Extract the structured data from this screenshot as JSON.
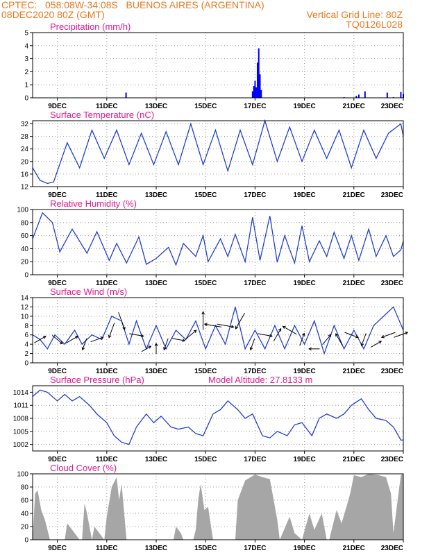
{
  "header": {
    "line1": "CPTEC:   058:08W-34:08S   BUENOS AIRES (ARGENTINA)",
    "line2": "08DEC2020 80Z (GMT)",
    "grid_note": "Vertical Grid Line: 80Z",
    "code": "TQ0126L028"
  },
  "x_ticks": [
    "9DEC",
    "11DEC",
    "13DEC",
    "15DEC",
    "17DEC",
    "19DEC",
    "21DEC",
    "23DEC"
  ],
  "chart_data": [
    {
      "type": "bar",
      "title": "Precipitation (mm/h)",
      "ylim": [
        0,
        5
      ],
      "yticks": [
        0,
        1,
        2,
        3,
        4,
        5
      ],
      "x_days": [
        11.78,
        16.9,
        16.95,
        17.0,
        17.05,
        17.1,
        17.15,
        17.2,
        17.25,
        20.6,
        21.1,
        21.2,
        21.45,
        22.35,
        22.6,
        22.9,
        23.0
      ],
      "values": [
        0.4,
        0.5,
        0.9,
        1.3,
        0.8,
        2.7,
        3.8,
        1.8,
        0.6,
        0.05,
        0.15,
        0.25,
        0.5,
        0.4,
        0.05,
        0.45,
        0.3
      ],
      "color": "#0000ff",
      "xlabel": "",
      "ylabel": ""
    },
    {
      "type": "line",
      "title": "Surface Temperature (nC)",
      "ylim": [
        12,
        33
      ],
      "yticks": [
        12,
        16,
        20,
        24,
        28,
        32
      ],
      "x_days": [
        8.0,
        8.3,
        8.6,
        8.85,
        9.4,
        9.9,
        10.4,
        10.9,
        11.4,
        11.9,
        12.4,
        12.9,
        13.4,
        13.9,
        14.4,
        14.9,
        15.4,
        15.9,
        16.4,
        16.9,
        17.4,
        17.9,
        18.4,
        18.9,
        19.4,
        19.9,
        20.4,
        20.9,
        21.4,
        21.9,
        22.4,
        22.9,
        23.0
      ],
      "values": [
        18,
        14,
        13,
        13.5,
        26,
        18,
        30,
        21,
        30,
        19,
        29,
        19,
        29.5,
        19,
        32,
        19,
        30,
        17,
        30,
        19,
        33,
        20,
        31,
        20,
        30,
        21,
        30,
        18,
        30,
        21,
        29,
        32,
        28
      ],
      "color": "#1f3fd0",
      "xlabel": "",
      "ylabel": ""
    },
    {
      "type": "line",
      "title": "Relative Humidity (%)",
      "ylim": [
        0,
        100
      ],
      "yticks": [
        0,
        20,
        40,
        60,
        80,
        100
      ],
      "x_days": [
        8.0,
        8.4,
        8.8,
        9.1,
        9.6,
        10.2,
        10.6,
        11.1,
        11.4,
        11.8,
        12.3,
        12.6,
        13.0,
        13.5,
        13.8,
        14.1,
        14.6,
        14.9,
        15.1,
        15.6,
        15.9,
        16.2,
        16.6,
        16.9,
        17.2,
        17.6,
        17.9,
        18.2,
        18.6,
        18.9,
        19.2,
        19.6,
        19.9,
        20.2,
        20.6,
        20.9,
        21.2,
        21.6,
        21.9,
        22.3,
        22.6,
        22.9,
        23.0
      ],
      "values": [
        55,
        95,
        80,
        35,
        70,
        33,
        66,
        22,
        48,
        18,
        58,
        16,
        25,
        42,
        15,
        48,
        28,
        60,
        20,
        55,
        28,
        62,
        20,
        88,
        22,
        90,
        19,
        60,
        18,
        75,
        20,
        52,
        28,
        65,
        25,
        60,
        22,
        70,
        28,
        60,
        28,
        38,
        52
      ],
      "color": "#1f3fd0",
      "xlabel": "",
      "ylabel": ""
    },
    {
      "type": "line",
      "title": "Surface Wind (m/s)",
      "ylim": [
        0,
        14
      ],
      "yticks": [
        0,
        2,
        4,
        6,
        8,
        10,
        12,
        14
      ],
      "x_days": [
        8.0,
        8.3,
        8.6,
        8.9,
        9.3,
        9.7,
        10.0,
        10.4,
        10.8,
        11.2,
        11.6,
        11.9,
        12.2,
        12.6,
        13.0,
        13.4,
        13.8,
        14.2,
        14.6,
        15.0,
        15.4,
        15.8,
        16.2,
        16.6,
        17.0,
        17.4,
        17.8,
        18.2,
        18.6,
        19.0,
        19.4,
        19.8,
        20.2,
        20.6,
        21.0,
        21.4,
        21.8,
        22.2,
        22.6,
        23.0
      ],
      "values": [
        6,
        5,
        3,
        6,
        4,
        7,
        4,
        6,
        5,
        10,
        9,
        4,
        9,
        3,
        8,
        3,
        7,
        5,
        9,
        3,
        8,
        4,
        12,
        3,
        7,
        3,
        8,
        3,
        8,
        4,
        9,
        2,
        8,
        3,
        7,
        3,
        8,
        10,
        12,
        7
      ],
      "color": "#1f3fd0",
      "arrow_x_days": [
        8.3,
        9.0,
        9.6,
        10.1,
        10.6,
        11.2,
        11.6,
        12.2,
        12.6,
        13.0,
        13.4,
        13.9,
        14.4,
        14.9,
        15.3,
        15.8,
        16.4,
        16.9,
        17.4,
        17.9,
        18.4,
        18.9,
        19.4,
        19.9,
        20.4,
        20.9,
        21.4,
        21.9,
        22.4,
        22.9
      ],
      "arrow_speed": [
        5,
        5,
        5,
        4,
        5,
        7,
        9,
        6,
        3,
        3,
        4,
        5,
        6,
        9,
        8,
        8,
        9,
        4,
        6,
        6,
        7,
        5,
        3,
        5,
        5,
        6,
        5,
        4,
        6,
        6
      ],
      "arrow_dir_deg": [
        60,
        130,
        60,
        200,
        70,
        200,
        160,
        100,
        60,
        0,
        200,
        100,
        50,
        0,
        280,
        100,
        210,
        200,
        100,
        30,
        300,
        20,
        270,
        40,
        330,
        110,
        200,
        60,
        250,
        70
      ],
      "xlabel": "",
      "ylabel": ""
    },
    {
      "type": "line",
      "title": "Surface Pressure (hPa)",
      "annotation": "Model Altitude: 27.8133 m",
      "ylim": [
        1000.5,
        1015.5
      ],
      "yticks": [
        1002,
        1005,
        1008,
        1011,
        1014
      ],
      "x_days": [
        8.0,
        8.3,
        8.6,
        9.0,
        9.3,
        9.6,
        9.9,
        10.3,
        10.6,
        11.0,
        11.3,
        11.6,
        11.9,
        12.2,
        12.6,
        12.9,
        13.2,
        13.6,
        13.9,
        14.3,
        14.6,
        14.9,
        15.3,
        15.6,
        15.9,
        16.3,
        16.6,
        16.9,
        17.3,
        17.6,
        17.9,
        18.3,
        18.6,
        18.9,
        19.3,
        19.6,
        19.9,
        20.3,
        20.6,
        20.9,
        21.3,
        21.6,
        21.9,
        22.3,
        22.6,
        22.9,
        23.0
      ],
      "values": [
        1013,
        1014.5,
        1014,
        1012,
        1013.5,
        1012,
        1013,
        1011,
        1009,
        1007,
        1004,
        1002.5,
        1002,
        1006,
        1009,
        1007,
        1008.5,
        1006,
        1005.5,
        1006,
        1004.5,
        1004,
        1009,
        1010,
        1012,
        1010,
        1008,
        1009,
        1004,
        1003.5,
        1005,
        1004,
        1006.5,
        1007,
        1004,
        1008,
        1009,
        1008,
        1009,
        1011,
        1012.5,
        1010,
        1008,
        1007.5,
        1006,
        1003,
        1003
      ],
      "color": "#1f3fd0",
      "xlabel": "",
      "ylabel": ""
    },
    {
      "type": "area",
      "title": "Cloud Cover (%)",
      "ylim": [
        0,
        100
      ],
      "yticks": [
        0,
        20,
        40,
        60,
        80,
        100
      ],
      "x_days": [
        8.0,
        8.1,
        8.2,
        8.35,
        8.5,
        8.7,
        8.8,
        9.3,
        9.4,
        9.9,
        10.0,
        10.1,
        10.2,
        10.4,
        10.5,
        10.9,
        11.0,
        11.2,
        11.4,
        11.5,
        11.6,
        11.8,
        11.9,
        13.7,
        13.8,
        14.0,
        14.1,
        14.5,
        14.6,
        14.7,
        14.8,
        14.95,
        15.1,
        15.3,
        16.2,
        16.3,
        16.6,
        17.0,
        17.3,
        17.6,
        17.9,
        18.0,
        18.4,
        18.6,
        18.9,
        19.2,
        19.4,
        19.7,
        19.9,
        20.0,
        20.3,
        20.5,
        20.7,
        20.85,
        21.0,
        21.3,
        21.6,
        22.0,
        22.3,
        22.5,
        22.6,
        22.9,
        23.0
      ],
      "values": [
        0,
        70,
        75,
        45,
        30,
        0,
        0,
        0,
        25,
        0,
        0,
        55,
        40,
        0,
        20,
        0,
        35,
        80,
        95,
        60,
        85,
        0,
        0,
        0,
        20,
        10,
        0,
        0,
        15,
        60,
        85,
        45,
        50,
        0,
        0,
        60,
        90,
        99,
        95,
        92,
        30,
        0,
        35,
        10,
        0,
        40,
        15,
        40,
        0,
        0,
        45,
        25,
        50,
        70,
        98,
        95,
        100,
        98,
        95,
        70,
        10,
        98,
        100
      ],
      "color": "#a6a6a6",
      "xlabel": "",
      "ylabel": ""
    }
  ]
}
